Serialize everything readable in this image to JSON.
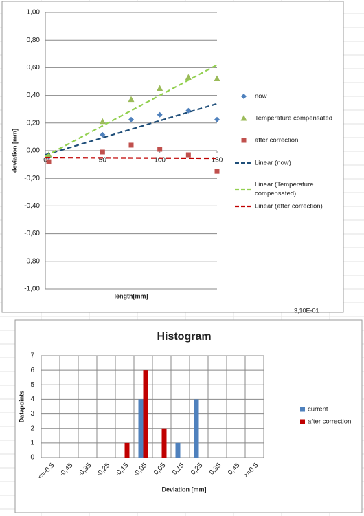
{
  "sheet_text": "3,10E-01",
  "chart_data": [
    {
      "type": "scatter",
      "xlabel": "length[mm]",
      "ylabel": "deviation [mm]",
      "xlim": [
        0,
        150
      ],
      "xticks": [
        0,
        50,
        100,
        150
      ],
      "ylim": [
        -1,
        1
      ],
      "yticks": [
        {
          "value": -1,
          "label": "-1,00"
        },
        {
          "value": -0.8,
          "label": "-0,80"
        },
        {
          "value": -0.6,
          "label": "-0,60"
        },
        {
          "value": -0.4,
          "label": "-0,40"
        },
        {
          "value": -0.2,
          "label": "-0,20"
        },
        {
          "value": 0,
          "label": "0,00"
        },
        {
          "value": 0.2,
          "label": "0,20"
        },
        {
          "value": 0.4,
          "label": "0,40"
        },
        {
          "value": 0.6,
          "label": "0,60"
        },
        {
          "value": 0.8,
          "label": "0,80"
        },
        {
          "value": 1,
          "label": "1,00"
        }
      ],
      "grid": true,
      "series": [
        {
          "name": "now",
          "color": "#4f81bd",
          "marker": "diamond",
          "x": [
            3,
            50,
            75,
            100,
            125,
            150
          ],
          "values": [
            -0.045,
            0.115,
            0.225,
            0.26,
            0.29,
            0.225
          ]
        },
        {
          "name": "Temperature compensated",
          "color": "#9bbb59",
          "marker": "triangle",
          "x": [
            3,
            50,
            75,
            100,
            125,
            150
          ],
          "values": [
            -0.03,
            0.21,
            0.37,
            0.45,
            0.53,
            0.52
          ]
        },
        {
          "name": "after correction",
          "color": "#c0504d",
          "marker": "square",
          "x": [
            3,
            50,
            75,
            100,
            125,
            150
          ],
          "values": [
            -0.08,
            -0.01,
            0.04,
            0.01,
            -0.03,
            -0.15
          ]
        },
        {
          "name": "Linear (now)",
          "color": "#1f4e79",
          "line": "dashed",
          "x": [
            0,
            150
          ],
          "values": [
            -0.03,
            0.34
          ]
        },
        {
          "name": "Linear (Temperature compensated)",
          "color": "#92d050",
          "line": "dashed",
          "x": [
            0,
            150
          ],
          "values": [
            -0.04,
            0.62
          ]
        },
        {
          "name": "Linear (after correction)",
          "color": "#c00000",
          "line": "dashed",
          "x": [
            0,
            150
          ],
          "values": [
            -0.05,
            -0.055
          ]
        }
      ]
    },
    {
      "type": "bar",
      "title": "Histogram",
      "xlabel": "Deviation [mm]",
      "ylabel": "Datapoints",
      "categories": [
        "<=-0.5",
        "-0,45",
        "-0,35",
        "-0,25",
        "-0,15",
        "-0,05",
        "0,05",
        "0,15",
        "0,25",
        "0,35",
        "0,45",
        ">=0.5"
      ],
      "ylim": [
        0,
        7
      ],
      "yticks": [
        0,
        1,
        2,
        3,
        4,
        5,
        6,
        7
      ],
      "grid": true,
      "series": [
        {
          "name": "current",
          "color": "#4f81bd",
          "values": [
            0,
            0,
            0,
            0,
            0,
            4,
            0,
            1,
            4,
            0,
            0,
            0
          ]
        },
        {
          "name": "after correction",
          "color": "#c00000",
          "values": [
            0,
            0,
            0,
            0,
            1,
            6,
            2,
            0,
            0,
            0,
            0,
            0
          ]
        }
      ]
    }
  ]
}
